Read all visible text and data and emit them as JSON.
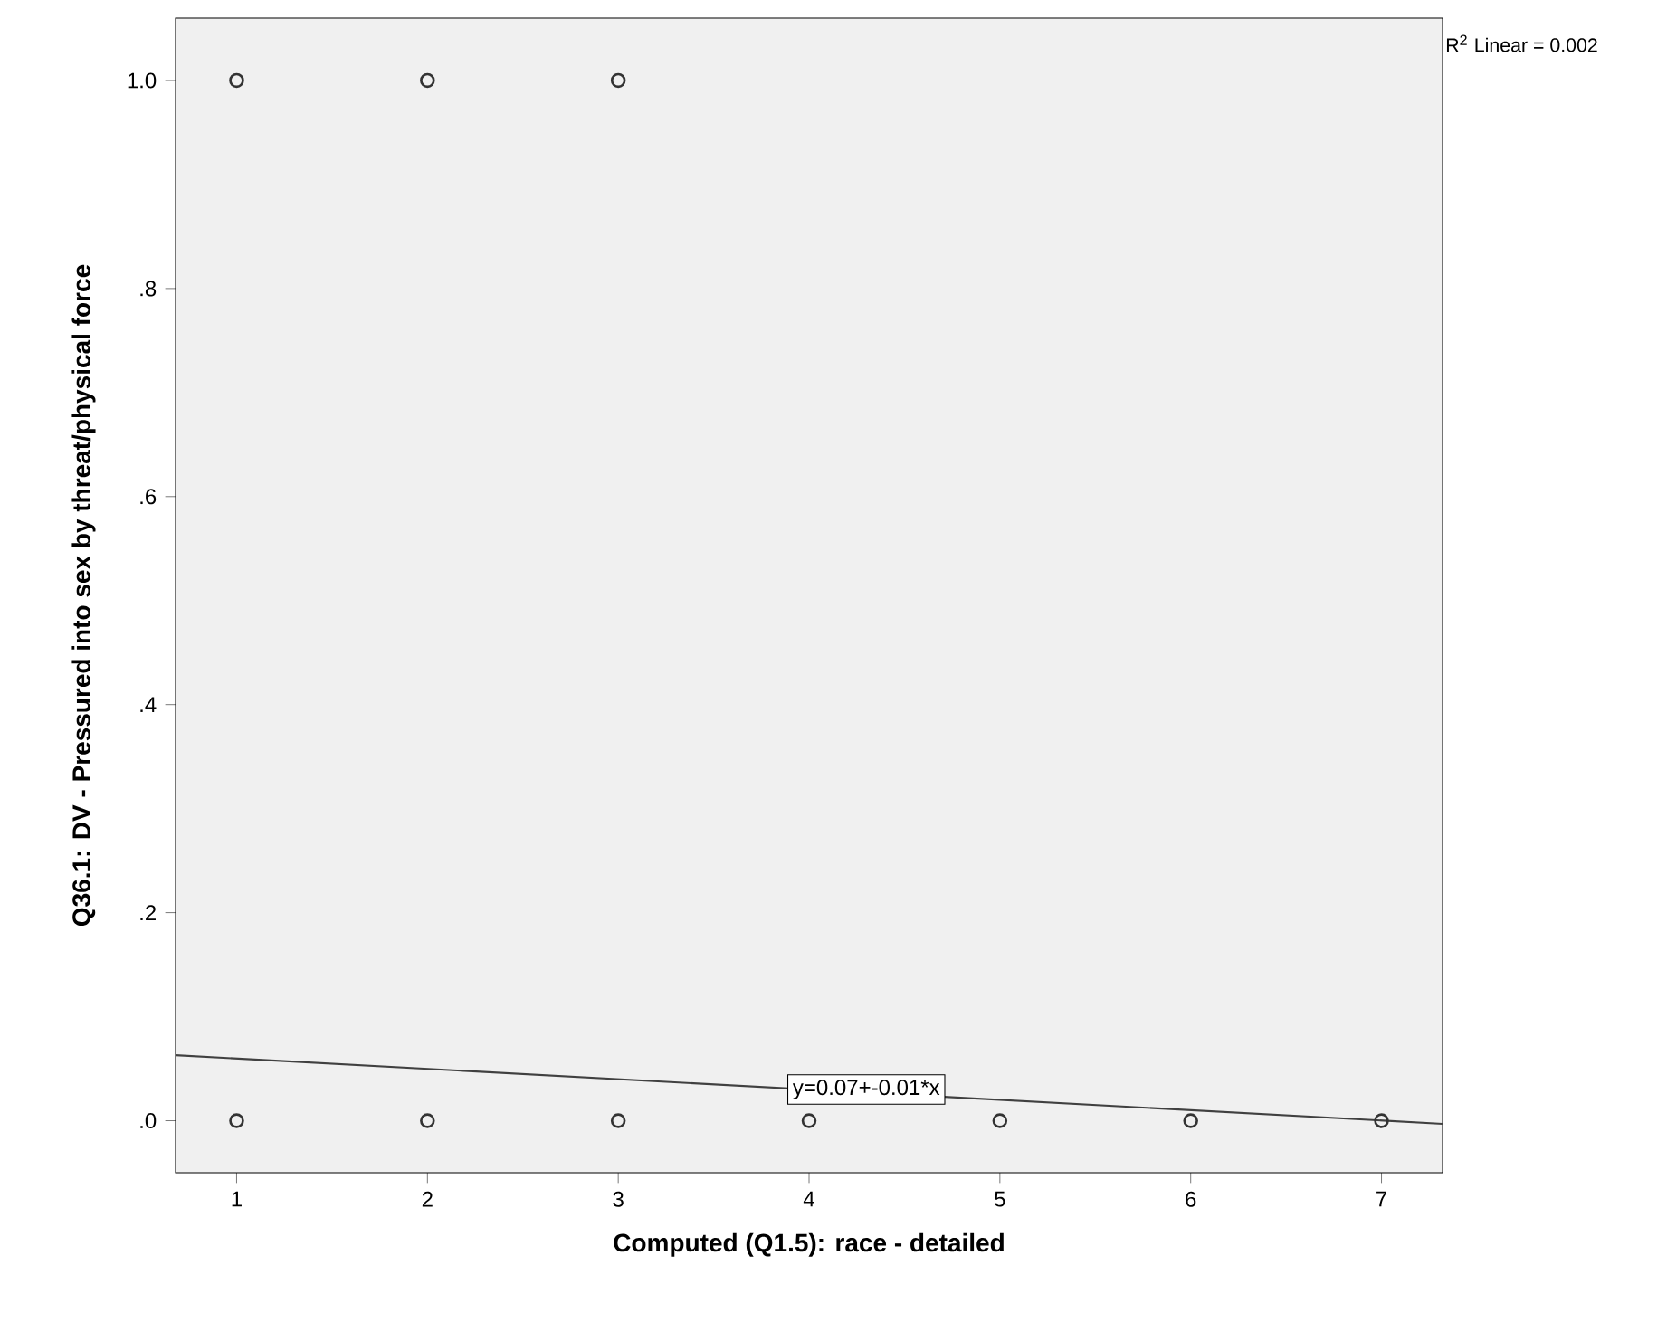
{
  "chart_data": {
    "type": "scatter",
    "xlabel": "Computed (Q1.5): race - detailed",
    "ylabel": "Q36.1: DV - Pressured into sex by threat/physical force",
    "xlim": [
      0.68,
      7.32
    ],
    "ylim": [
      -0.05,
      1.06
    ],
    "xticks": [
      1,
      2,
      3,
      4,
      5,
      6,
      7
    ],
    "yticks": [
      {
        "value": 0,
        "label": ".0"
      },
      {
        "value": 0.2,
        "label": ".2"
      },
      {
        "value": 0.4,
        "label": ".4"
      },
      {
        "value": 0.6,
        "label": ".6"
      },
      {
        "value": 0.8,
        "label": ".8"
      },
      {
        "value": 1,
        "label": "1.0"
      }
    ],
    "series": [
      {
        "color": "#333333",
        "marker": "circle",
        "x": [
          1,
          2,
          3,
          1,
          2,
          3,
          4,
          5,
          6,
          7
        ],
        "values": [
          1,
          1,
          1,
          0,
          0,
          0,
          0,
          0,
          0,
          0
        ]
      },
      {
        "type": "line",
        "color": "#404040",
        "marker": "none",
        "x": [
          0.68,
          7.32
        ],
        "values": [
          0.063,
          -0.003
        ]
      }
    ],
    "grid": false,
    "annotations": [
      "R$^{2}$ Linear = 0.002",
      {
        "text": "y=0.07+-0.01*x",
        "x": 4.3,
        "y": 0.03
      }
    ]
  }
}
